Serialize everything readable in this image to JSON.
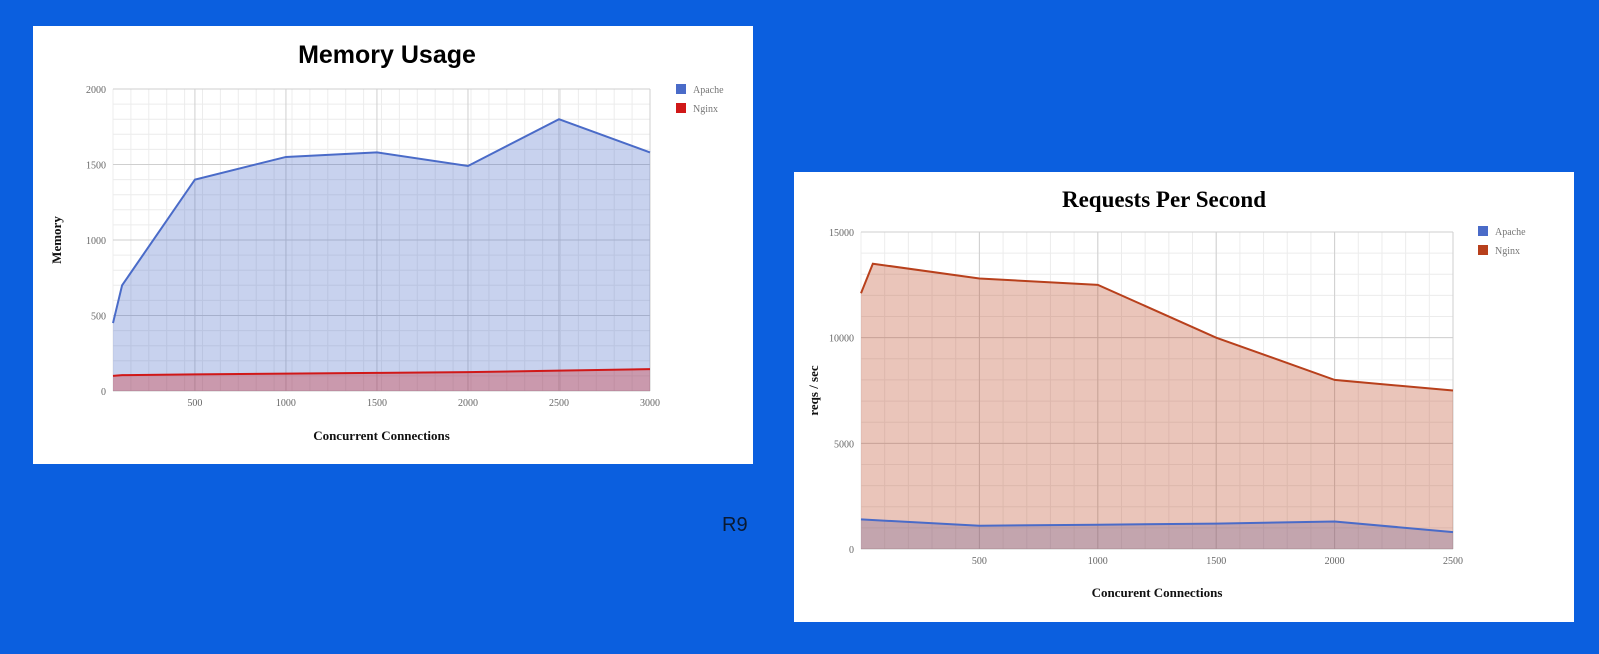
{
  "slide_label": "R9",
  "colors": {
    "apache": "#4a6bc8",
    "nginx_memory": "#d01818",
    "nginx_rps": "#b8401c",
    "background": "#0b5fdf"
  },
  "chart_data": [
    {
      "type": "area",
      "title": "Memory Usage",
      "xlabel": "Concurrent Connections",
      "ylabel": "Memory",
      "xlim": [
        50,
        3000
      ],
      "ylim": [
        0,
        2000
      ],
      "x_ticks": [
        500,
        1000,
        1500,
        2000,
        2500,
        3000
      ],
      "y_ticks": [
        0,
        500,
        1000,
        1500,
        2000
      ],
      "grid": true,
      "legend": "top-right",
      "series": [
        {
          "name": "Apache",
          "color": "#4a6bc8",
          "x": [
            50,
            100,
            500,
            1000,
            1500,
            2000,
            2500,
            3000
          ],
          "y": [
            450,
            700,
            1400,
            1550,
            1580,
            1490,
            1800,
            1580
          ]
        },
        {
          "name": "Nginx",
          "color": "#d01818",
          "x": [
            50,
            100,
            500,
            1000,
            1500,
            2000,
            2500,
            3000
          ],
          "y": [
            100,
            105,
            110,
            115,
            120,
            125,
            135,
            145
          ]
        }
      ]
    },
    {
      "type": "area",
      "title": "Requests Per Second",
      "xlabel": "Concurent Connections",
      "ylabel": "reqs / sec",
      "xlim": [
        0,
        2500
      ],
      "ylim": [
        0,
        15000
      ],
      "x_ticks": [
        500,
        1000,
        1500,
        2000,
        2500
      ],
      "y_ticks": [
        0,
        5000,
        10000,
        15000
      ],
      "grid": true,
      "legend": "top-right",
      "series": [
        {
          "name": "Apache",
          "color": "#4a6bc8",
          "x": [
            0,
            500,
            1000,
            1500,
            2000,
            2500
          ],
          "y": [
            1400,
            1100,
            1150,
            1200,
            1300,
            800
          ]
        },
        {
          "name": "Nginx",
          "color": "#b8401c",
          "x": [
            0,
            50,
            500,
            1000,
            1500,
            2000,
            2500
          ],
          "y": [
            12100,
            13500,
            12800,
            12500,
            10000,
            8000,
            7500
          ]
        }
      ]
    }
  ]
}
